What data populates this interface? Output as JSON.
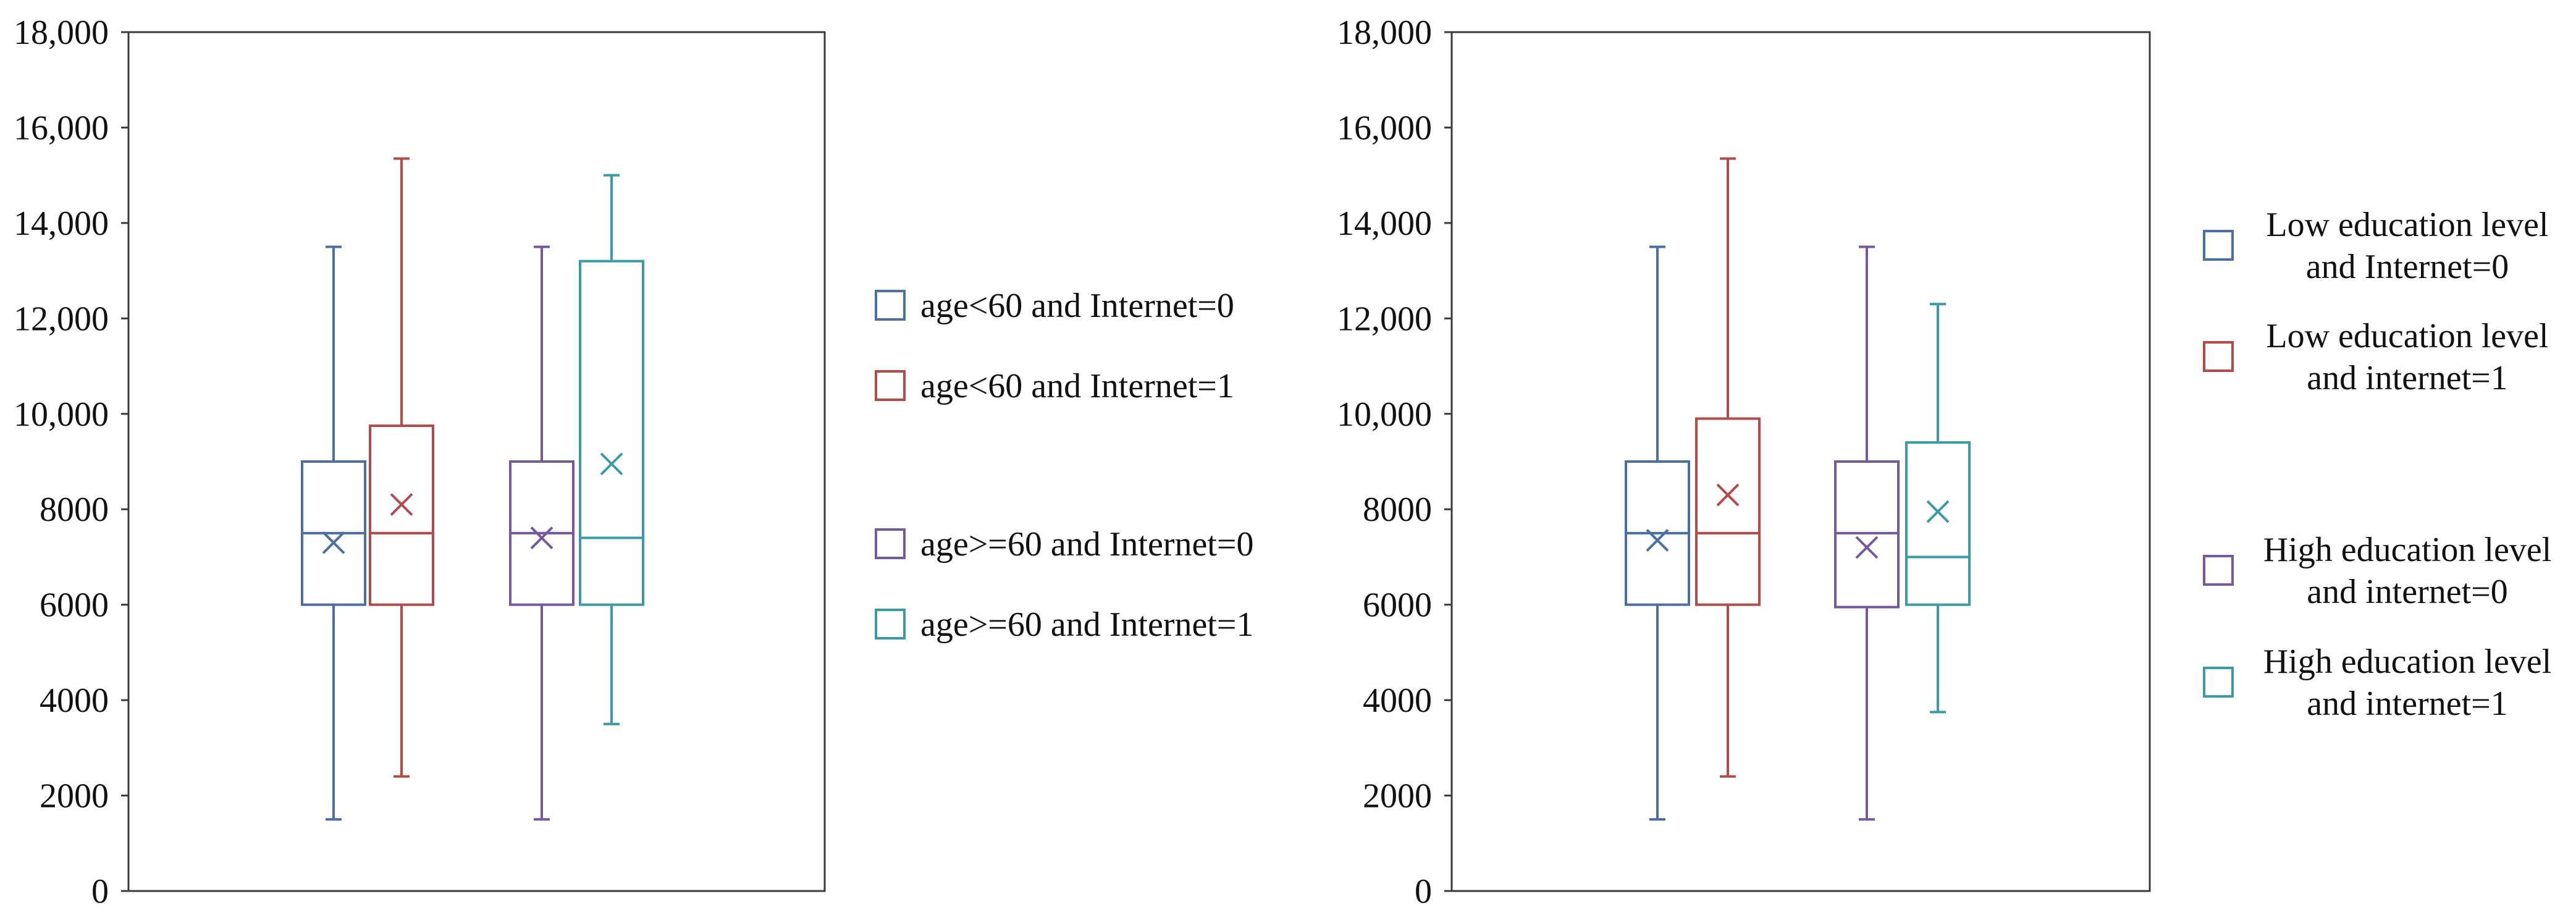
{
  "chart_data": [
    {
      "type": "box",
      "title": "",
      "xlabel": "",
      "ylabel": "",
      "ylim": [
        0,
        18000
      ],
      "yticks": [
        0,
        2000,
        4000,
        6000,
        8000,
        10000,
        12000,
        14000,
        16000,
        18000
      ],
      "ytick_labels": [
        "0",
        "2000",
        "4000",
        "6000",
        "8000",
        "10,000",
        "12,000",
        "14,000",
        "16,000",
        "18,000"
      ],
      "grid": false,
      "legend_position": "right",
      "series": [
        {
          "name": "age<60 and Internet=0",
          "color": "#4a6fa5",
          "min": 1500,
          "q1": 6000,
          "median": 7500,
          "q3": 9000,
          "max": 13500,
          "mean": 7300
        },
        {
          "name": "age<60 and Internet=1",
          "color": "#b44a48",
          "min": 2400,
          "q1": 6000,
          "median": 7500,
          "q3": 9750,
          "max": 15350,
          "mean": 8100
        },
        {
          "name": "age>=60 and Internet=0",
          "color": "#7558a0",
          "min": 1500,
          "q1": 6000,
          "median": 7500,
          "q3": 9000,
          "max": 13500,
          "mean": 7400
        },
        {
          "name": "age>=60 and Internet=1",
          "color": "#3a9aa8",
          "min": 3500,
          "q1": 6000,
          "median": 7400,
          "q3": 13200,
          "max": 15000,
          "mean": 8950
        }
      ]
    },
    {
      "type": "box",
      "title": "",
      "xlabel": "",
      "ylabel": "",
      "ylim": [
        0,
        18000
      ],
      "yticks": [
        0,
        2000,
        4000,
        6000,
        8000,
        10000,
        12000,
        14000,
        16000,
        18000
      ],
      "ytick_labels": [
        "0",
        "2000",
        "4000",
        "6000",
        "8000",
        "10,000",
        "12,000",
        "14,000",
        "16,000",
        "18,000"
      ],
      "grid": false,
      "legend_position": "right",
      "series": [
        {
          "name_lines": [
            "Low education level",
            "and Internet=0"
          ],
          "color": "#4a6fa5",
          "min": 1500,
          "q1": 6000,
          "median": 7500,
          "q3": 9000,
          "max": 13500,
          "mean": 7350
        },
        {
          "name_lines": [
            "Low education level",
            "and internet=1"
          ],
          "color": "#b44a48",
          "min": 2400,
          "q1": 6000,
          "median": 7500,
          "q3": 9900,
          "max": 15350,
          "mean": 8300
        },
        {
          "name_lines": [
            "High education level",
            "and internet=0"
          ],
          "color": "#7558a0",
          "min": 1500,
          "q1": 5950,
          "median": 7500,
          "q3": 9000,
          "max": 13500,
          "mean": 7200
        },
        {
          "name_lines": [
            "High education level",
            "and internet=1"
          ],
          "color": "#3a9aa8",
          "min": 3750,
          "q1": 6000,
          "median": 7000,
          "q3": 9400,
          "max": 12300,
          "mean": 7950
        }
      ]
    }
  ]
}
